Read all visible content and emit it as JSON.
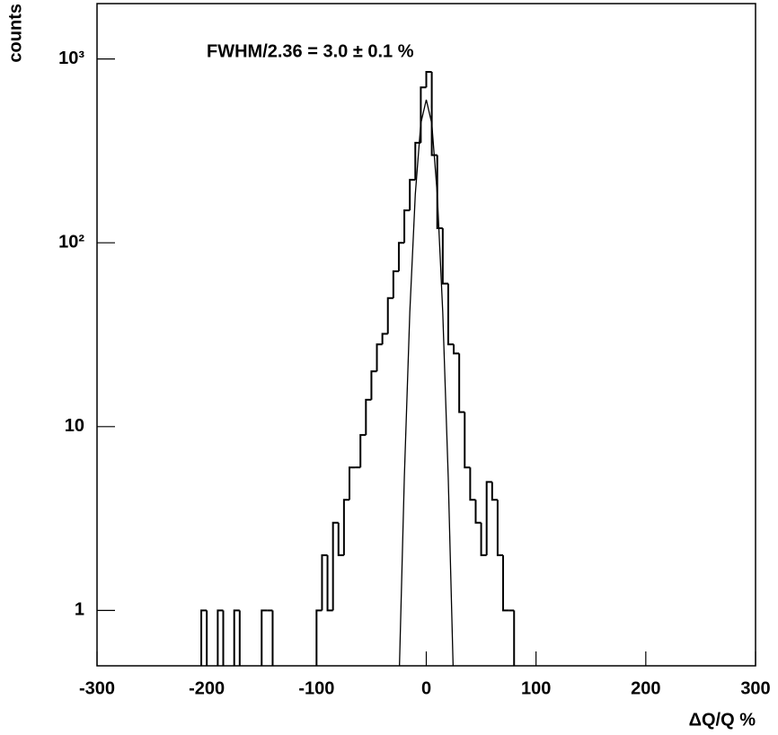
{
  "chart_data": {
    "type": "histogram",
    "annotation": "FWHM/2.36 = 3.0 ± 0.1 %",
    "x_label": "ΔQ/Q %",
    "y_label": "counts",
    "log_y": true,
    "color": "#000000",
    "xlim": [
      -300,
      300
    ],
    "ylim": [
      0.5,
      2000
    ],
    "xticks": [
      -300,
      -200,
      -100,
      0,
      100,
      200,
      300
    ],
    "yticks": [
      1,
      10,
      {
        "value": 100,
        "label": "10²"
      },
      {
        "value": 1000,
        "label": "10³"
      }
    ],
    "bins": [
      -205,
      -200,
      -195,
      -190,
      -185,
      -180,
      -175,
      -170,
      -165,
      -160,
      -155,
      -150,
      -145,
      -140,
      -135,
      -130,
      -125,
      -120,
      -115,
      -110,
      -105,
      -100,
      -95,
      -90,
      -85,
      -80,
      -75,
      -70,
      -65,
      -60,
      -55,
      -50,
      -45,
      -40,
      -35,
      -30,
      -25,
      -20,
      -15,
      -10,
      -5,
      0,
      5,
      10,
      15,
      20,
      25,
      30,
      35,
      40,
      45,
      50,
      55,
      60,
      65,
      70,
      75,
      80,
      85
    ],
    "values": [
      1,
      0,
      0,
      1,
      0,
      0,
      1,
      0,
      0,
      0,
      0,
      1,
      1,
      0,
      0,
      0,
      0,
      0,
      0,
      0,
      0,
      1,
      2,
      1,
      3,
      2,
      4,
      6,
      6,
      9,
      14,
      20,
      28,
      32,
      50,
      70,
      100,
      150,
      220,
      350,
      700,
      850,
      300,
      120,
      60,
      28,
      25,
      12,
      6,
      4,
      3,
      2,
      5,
      4,
      2,
      1,
      1,
      0
    ],
    "fit": {
      "x": [
        -25,
        -20,
        -15,
        -10,
        -5,
        0,
        5,
        10,
        15,
        20,
        25
      ],
      "values": [
        0.37,
        5.3,
        42,
        184,
        446,
        600,
        446,
        184,
        42,
        5.3,
        0.37
      ]
    }
  }
}
